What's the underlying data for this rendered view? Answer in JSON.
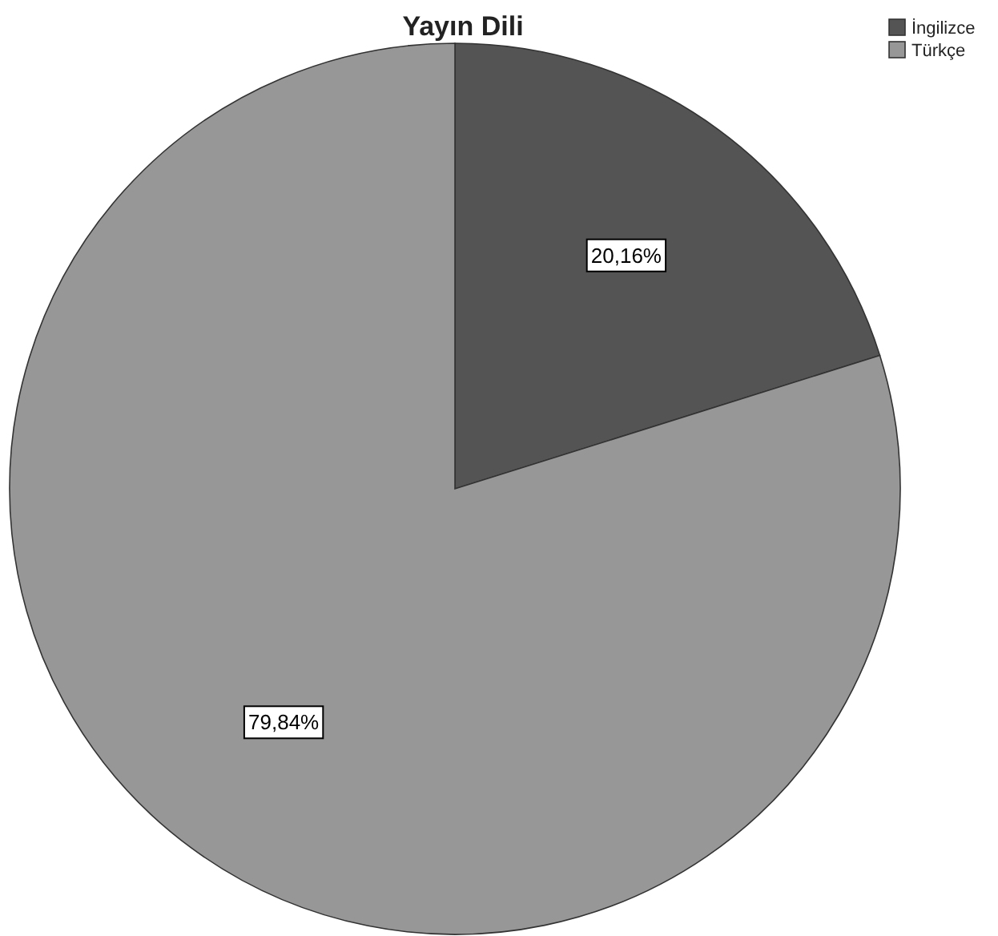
{
  "chart_data": {
    "type": "pie",
    "title": "Yayın Dili",
    "categories": [
      "İngilizce",
      "Türkçe"
    ],
    "values": [
      20.16,
      79.84
    ],
    "colors": [
      "#545454",
      "#979797"
    ],
    "value_labels": [
      "20,16%",
      "79,84%"
    ],
    "legend": "top right"
  }
}
